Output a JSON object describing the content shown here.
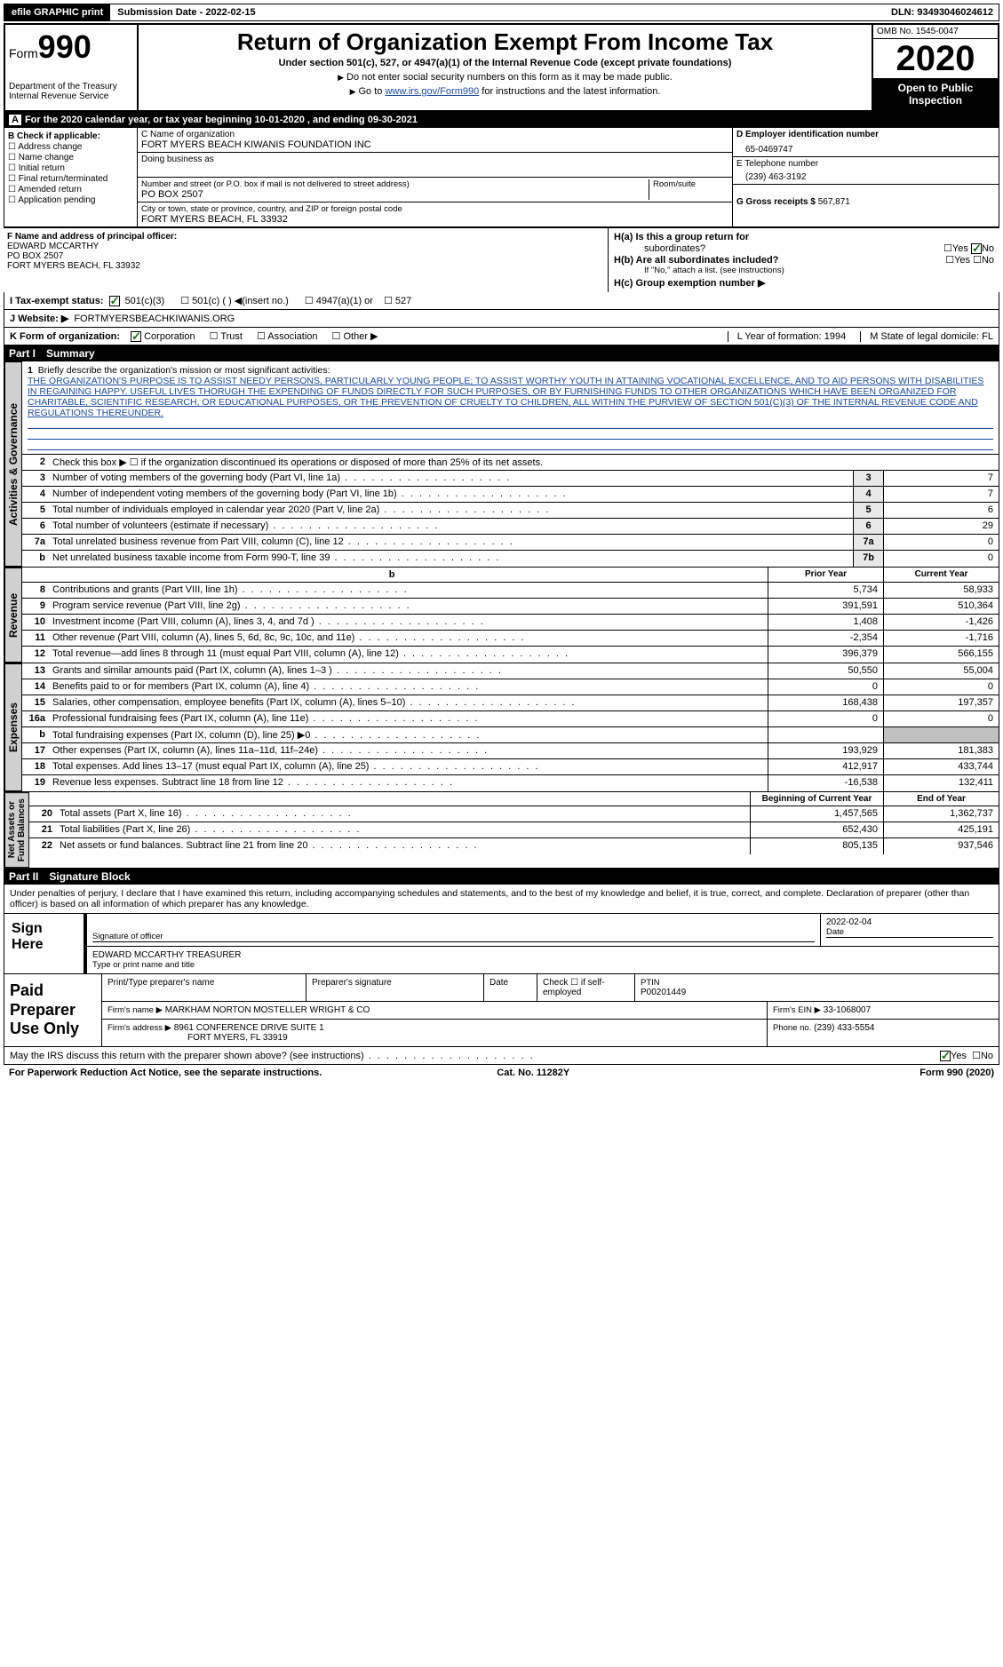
{
  "topbar": {
    "efile": "efile GRAPHIC print",
    "subLabel": "Submission Date - ",
    "subDate": "2022-02-15",
    "dlnLabel": "DLN: ",
    "dln": "93493046024612"
  },
  "header": {
    "formWord": "Form",
    "formNum": "990",
    "dept": "Department of the Treasury\nInternal Revenue Service",
    "title": "Return of Organization Exempt From Income Tax",
    "sub": "Under section 501(c), 527, or 4947(a)(1) of the Internal Revenue Code (except private foundations)",
    "note1": "Do not enter social security numbers on this form as it may be made public.",
    "note2a": "Go to ",
    "note2link": "www.irs.gov/Form990",
    "note2b": " for instructions and the latest information.",
    "omb": "OMB No. 1545-0047",
    "year": "2020",
    "open": "Open to Public Inspection"
  },
  "periodA": "For the 2020 calendar year, or tax year beginning 10-01-2020   , and ending 09-30-2021",
  "boxB": {
    "label": "B Check if applicable:",
    "items": [
      "Address change",
      "Name change",
      "Initial return",
      "Final return/terminated",
      "Amended return",
      "Application pending"
    ]
  },
  "boxC": {
    "label": "C Name of organization",
    "name": "FORT MYERS BEACH KIWANIS FOUNDATION INC",
    "dba": "Doing business as",
    "streetLabel": "Number and street (or P.O. box if mail is not delivered to street address)",
    "roomLabel": "Room/suite",
    "street": "PO BOX 2507",
    "cityLabel": "City or town, state or province, country, and ZIP or foreign postal code",
    "city": "FORT MYERS BEACH, FL  33932"
  },
  "boxD": {
    "label": "D Employer identification number",
    "val": "65-0469747"
  },
  "boxE": {
    "label": "E Telephone number",
    "val": "(239) 463-3192"
  },
  "boxG": {
    "label": "G Gross receipts $ ",
    "val": "567,871"
  },
  "boxF": {
    "label": "F  Name and address of principal officer:",
    "line1": "EDWARD MCCARTHY",
    "line2": "PO BOX 2507",
    "line3": "FORT MYERS BEACH, FL  33932"
  },
  "boxH": {
    "a": "H(a)  Is this a group return for",
    "a2": "subordinates?",
    "yes": "Yes",
    "no": "No",
    "b": "H(b)  Are all subordinates included?",
    "bNote": "If \"No,\" attach a list. (see instructions)",
    "c": "H(c)  Group exemption number ▶"
  },
  "rowI": {
    "label": "I   Tax-exempt status:",
    "opts": [
      "501(c)(3)",
      "501(c) (  ) ◀(insert no.)",
      "4947(a)(1) or",
      "527"
    ]
  },
  "rowJ": {
    "label": "J   Website: ▶",
    "val": "FORTMYERSBEACHKIWANIS.ORG"
  },
  "rowK": {
    "label": "K Form of organization:",
    "opts": [
      "Corporation",
      "Trust",
      "Association",
      "Other ▶"
    ],
    "l": "L Year of formation: 1994",
    "m": "M State of legal domicile: FL"
  },
  "part1": {
    "num": "Part I",
    "title": "Summary"
  },
  "summary": {
    "l1label": "Briefly describe the organization's mission or most significant activities:",
    "mission": "THE ORGANIZATION'S PURPOSE IS TO ASSIST NEEDY PERSONS, PARTICULARLY YOUNG PEOPLE; TO ASSIST WORTHY YOUTH IN ATTAINING VOCATIONAL EXCELLENCE, AND TO AID PERSONS WITH DISABILITIES IN REGAINING HAPPY, USEFUL LIVES THORUGH THE EXPENDING OF FUNDS DIRECTLY FOR SUCH PURPOSES, OR BY FURNISHING FUNDS TO OTHER ORGANIZATIONS WHICH HAVE BEEN ORGANIZED FOR CHARITABLE, SCIENTIFIC RESEARCH, OR EDUCATIONAL PURPOSES, OR THE PREVENTION OF CRUELTY TO CHILDREN, ALL WITHIN THE PURVIEW OF SECTION 501(C)(3) OF THE INTERNAL REVENUE CODE AND REGULATIONS THEREUNDER.",
    "l2": "Check this box ▶ ☐  if the organization discontinued its operations or disposed of more than 25% of its net assets.",
    "govLines": [
      {
        "n": "3",
        "t": "Number of voting members of the governing body (Part VI, line 1a)",
        "b": "3",
        "v": "7"
      },
      {
        "n": "4",
        "t": "Number of independent voting members of the governing body (Part VI, line 1b)",
        "b": "4",
        "v": "7"
      },
      {
        "n": "5",
        "t": "Total number of individuals employed in calendar year 2020 (Part V, line 2a)",
        "b": "5",
        "v": "6"
      },
      {
        "n": "6",
        "t": "Total number of volunteers (estimate if necessary)",
        "b": "6",
        "v": "29"
      },
      {
        "n": "7a",
        "t": "Total unrelated business revenue from Part VIII, column (C), line 12",
        "b": "7a",
        "v": "0"
      },
      {
        "n": "b",
        "t": "Net unrelated business taxable income from Form 990-T, line 39",
        "b": "7b",
        "v": "0"
      }
    ],
    "priorHdr": "Prior Year",
    "currHdr": "Current Year",
    "revLines": [
      {
        "n": "8",
        "t": "Contributions and grants (Part VIII, line 1h)",
        "p": "5,734",
        "c": "58,933"
      },
      {
        "n": "9",
        "t": "Program service revenue (Part VIII, line 2g)",
        "p": "391,591",
        "c": "510,364"
      },
      {
        "n": "10",
        "t": "Investment income (Part VIII, column (A), lines 3, 4, and 7d )",
        "p": "1,408",
        "c": "-1,426"
      },
      {
        "n": "11",
        "t": "Other revenue (Part VIII, column (A), lines 5, 6d, 8c, 9c, 10c, and 11e)",
        "p": "-2,354",
        "c": "-1,716"
      },
      {
        "n": "12",
        "t": "Total revenue—add lines 8 through 11 (must equal Part VIII, column (A), line 12)",
        "p": "396,379",
        "c": "566,155"
      }
    ],
    "expLines": [
      {
        "n": "13",
        "t": "Grants and similar amounts paid (Part IX, column (A), lines 1–3 )",
        "p": "50,550",
        "c": "55,004"
      },
      {
        "n": "14",
        "t": "Benefits paid to or for members (Part IX, column (A), line 4)",
        "p": "0",
        "c": "0"
      },
      {
        "n": "15",
        "t": "Salaries, other compensation, employee benefits (Part IX, column (A), lines 5–10)",
        "p": "168,438",
        "c": "197,357"
      },
      {
        "n": "16a",
        "t": "Professional fundraising fees (Part IX, column (A), line 11e)",
        "p": "0",
        "c": "0"
      },
      {
        "n": "b",
        "t": "Total fundraising expenses (Part IX, column (D), line 25) ▶0",
        "p": "",
        "c": "",
        "grey": true
      },
      {
        "n": "17",
        "t": "Other expenses (Part IX, column (A), lines 11a–11d, 11f–24e)",
        "p": "193,929",
        "c": "181,383"
      },
      {
        "n": "18",
        "t": "Total expenses. Add lines 13–17 (must equal Part IX, column (A), line 25)",
        "p": "412,917",
        "c": "433,744"
      },
      {
        "n": "19",
        "t": "Revenue less expenses. Subtract line 18 from line 12",
        "p": "-16,538",
        "c": "132,411"
      }
    ],
    "netHdr1": "Beginning of Current Year",
    "netHdr2": "End of Year",
    "netLines": [
      {
        "n": "20",
        "t": "Total assets (Part X, line 16)",
        "p": "1,457,565",
        "c": "1,362,737"
      },
      {
        "n": "21",
        "t": "Total liabilities (Part X, line 26)",
        "p": "652,430",
        "c": "425,191"
      },
      {
        "n": "22",
        "t": "Net assets or fund balances. Subtract line 21 from line 20",
        "p": "805,135",
        "c": "937,546"
      }
    ],
    "tabs": {
      "gov": "Activities & Governance",
      "rev": "Revenue",
      "exp": "Expenses",
      "net": "Net Assets or\nFund Balances"
    }
  },
  "part2": {
    "num": "Part II",
    "title": "Signature Block"
  },
  "sig": {
    "decl": "Under penalties of perjury, I declare that I have examined this return, including accompanying schedules and statements, and to the best of my knowledge and belief, it is true, correct, and complete. Declaration of preparer (other than officer) is based on all information of which preparer has any knowledge.",
    "signHere": "Sign Here",
    "sigOfficer": "Signature of officer",
    "date": "Date",
    "dateVal": "2022-02-04",
    "typeName": "Type or print name and title",
    "nameVal": "EDWARD MCCARTHY TREASURER",
    "paid": "Paid Preparer Use Only",
    "pName": "Print/Type preparer's name",
    "pSig": "Preparer's signature",
    "pDate": "Date",
    "pSelf": "Check ☐  if self-employed",
    "ptin": "PTIN",
    "ptinVal": "P00201449",
    "firmName": "Firm's name    ▶",
    "firmNameVal": "MARKHAM NORTON MOSTELLER WRIGHT & CO",
    "firmEin": "Firm's EIN ▶",
    "firmEinVal": "33-1068007",
    "firmAddr": "Firm's address ▶",
    "firmAddrVal": "8961 CONFERENCE DRIVE SUITE 1",
    "firmAddr2": "FORT MYERS, FL  33919",
    "phone": "Phone no.",
    "phoneVal": "(239) 433-5554"
  },
  "footer": {
    "discuss": "May the IRS discuss this return with the preparer shown above? (see instructions)",
    "yes": "Yes",
    "no": "No",
    "pra": "For Paperwork Reduction Act Notice, see the separate instructions.",
    "cat": "Cat. No. 11282Y",
    "form": "Form 990 (2020)"
  }
}
